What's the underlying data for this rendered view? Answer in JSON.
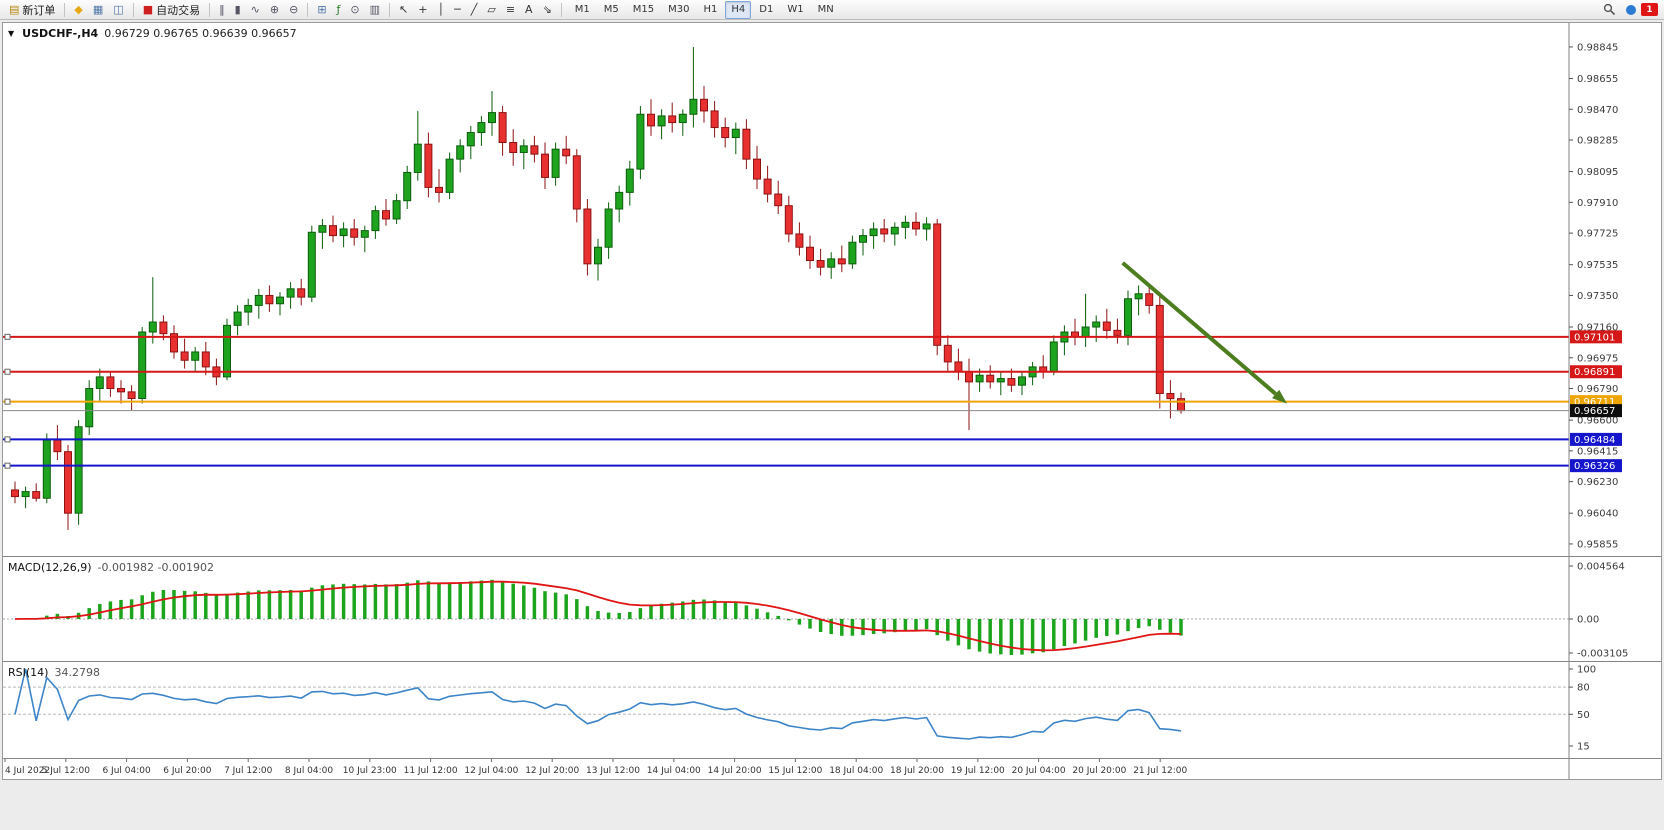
{
  "toolbar": {
    "buttons": [
      {
        "name": "new-order-button",
        "glyph": "▤",
        "glyph_color": "#b8860b",
        "label": "新订单"
      },
      {
        "sep": true
      },
      {
        "name": "sound-button",
        "glyph": "◆",
        "glyph_color": "#e6a817"
      },
      {
        "name": "market-watch-button",
        "glyph": "▦",
        "glyph_color": "#4f75a8"
      },
      {
        "name": "data-window-button",
        "glyph": "◫",
        "glyph_color": "#4f75a8"
      },
      {
        "sep": true
      },
      {
        "name": "autotrade-button",
        "glyph": "■",
        "glyph_color": "#cf1f1f",
        "label": "自动交易"
      },
      {
        "sep": true
      },
      {
        "name": "bar-chart-button",
        "glyph": "‖",
        "glyph_color": "#556"
      },
      {
        "name": "candle-chart-button",
        "glyph": "▮",
        "glyph_color": "#556"
      },
      {
        "name": "line-chart-button",
        "glyph": "∿",
        "glyph_color": "#556"
      },
      {
        "name": "zoom-in-button",
        "glyph": "⊕",
        "glyph_color": "#556"
      },
      {
        "name": "zoom-out-button",
        "glyph": "⊖",
        "glyph_color": "#556"
      },
      {
        "sep": true
      },
      {
        "name": "tile-windows-button",
        "glyph": "⊞",
        "glyph_color": "#4f75a8"
      },
      {
        "name": "indicators-button",
        "glyph": "ƒ",
        "glyph_color": "#2d7d2d"
      },
      {
        "name": "period-button",
        "glyph": "⊙",
        "glyph_color": "#556"
      },
      {
        "name": "template-button",
        "glyph": "▥",
        "glyph_color": "#556"
      },
      {
        "sep": true
      },
      {
        "name": "cursor-button",
        "glyph": "↖",
        "glyph_color": "#333"
      },
      {
        "name": "crosshair-button",
        "glyph": "+",
        "glyph_color": "#333"
      },
      {
        "name": "vertical-line-button",
        "glyph": "│",
        "glyph_color": "#333"
      },
      {
        "name": "horizontal-line-button",
        "glyph": "─",
        "glyph_color": "#333"
      },
      {
        "name": "trendline-button",
        "glyph": "╱",
        "glyph_color": "#333"
      },
      {
        "name": "channel-button",
        "glyph": "▱",
        "glyph_color": "#333"
      },
      {
        "name": "fibonacci-button",
        "glyph": "≡",
        "glyph_color": "#333"
      },
      {
        "name": "text-button",
        "glyph": "A",
        "glyph_color": "#333"
      },
      {
        "name": "arrow-object-button",
        "glyph": "⇘",
        "glyph_color": "#333"
      },
      {
        "sep": true
      }
    ],
    "timeframes": [
      "M1",
      "M5",
      "M15",
      "M30",
      "H1",
      "H4",
      "D1",
      "W1",
      "MN"
    ],
    "active_timeframe": "H4",
    "badge": "1"
  },
  "chart": {
    "dropdown_glyph": "▼",
    "title": "USDCHF-,H4",
    "ohlc": "0.96729 0.96765 0.96639 0.96657"
  },
  "chart_data": {
    "type": "candlestick",
    "symbol": "USDCHF",
    "period": "H4",
    "last_ohlc": {
      "open": "0.96729",
      "high": "0.96765",
      "low": "0.96639",
      "close": "0.96657"
    },
    "price_ticks": [
      "0.98845",
      "0.98655",
      "0.98470",
      "0.98285",
      "0.98095",
      "0.97910",
      "0.97725",
      "0.97535",
      "0.97350",
      "0.97160",
      "0.96975",
      "0.96790",
      "0.96600",
      "0.96415",
      "0.96230",
      "0.96040",
      "0.95855"
    ],
    "time_labels": [
      "4 Jul 2022",
      "5 Jul 12:00",
      "6 Jul 04:00",
      "6 Jul 20:00",
      "7 Jul 12:00",
      "8 Jul 04:00",
      "10 Jul 23:00",
      "11 Jul 12:00",
      "12 Jul 04:00",
      "12 Jul 20:00",
      "13 Jul 12:00",
      "14 Jul 04:00",
      "14 Jul 20:00",
      "15 Jul 12:00",
      "18 Jul 04:00",
      "18 Jul 20:00",
      "19 Jul 12:00",
      "20 Jul 04:00",
      "20 Jul 20:00",
      "21 Jul 12:00"
    ],
    "candles": [
      [
        0.9618,
        0.9623,
        0.961,
        0.9614
      ],
      [
        0.9614,
        0.962,
        0.9607,
        0.9617
      ],
      [
        0.9617,
        0.9622,
        0.9611,
        0.9613
      ],
      [
        0.9613,
        0.9652,
        0.961,
        0.9648
      ],
      [
        0.9648,
        0.9657,
        0.9636,
        0.9641
      ],
      [
        0.9641,
        0.9645,
        0.9594,
        0.9604
      ],
      [
        0.9604,
        0.966,
        0.9597,
        0.9656
      ],
      [
        0.9656,
        0.9684,
        0.9651,
        0.9679
      ],
      [
        0.9679,
        0.9691,
        0.9671,
        0.9686
      ],
      [
        0.9686,
        0.9689,
        0.9674,
        0.9679
      ],
      [
        0.9679,
        0.9684,
        0.967,
        0.9677
      ],
      [
        0.9677,
        0.9681,
        0.9666,
        0.9673
      ],
      [
        0.9673,
        0.9716,
        0.967,
        0.9713
      ],
      [
        0.9713,
        0.9746,
        0.9706,
        0.9719
      ],
      [
        0.9719,
        0.9723,
        0.9708,
        0.9712
      ],
      [
        0.9712,
        0.9717,
        0.9697,
        0.9701
      ],
      [
        0.9701,
        0.9709,
        0.9691,
        0.9696
      ],
      [
        0.9696,
        0.9704,
        0.9689,
        0.9701
      ],
      [
        0.9701,
        0.9707,
        0.9687,
        0.9692
      ],
      [
        0.9692,
        0.9697,
        0.9681,
        0.9686
      ],
      [
        0.9686,
        0.9721,
        0.9684,
        0.9717
      ],
      [
        0.9717,
        0.9729,
        0.9711,
        0.9725
      ],
      [
        0.9725,
        0.9733,
        0.9717,
        0.9729
      ],
      [
        0.9729,
        0.9739,
        0.9721,
        0.9735
      ],
      [
        0.9735,
        0.9741,
        0.9725,
        0.973
      ],
      [
        0.973,
        0.9737,
        0.9723,
        0.9734
      ],
      [
        0.9734,
        0.9743,
        0.9727,
        0.9739
      ],
      [
        0.9739,
        0.9745,
        0.9729,
        0.9734
      ],
      [
        0.9734,
        0.9777,
        0.9731,
        0.9773
      ],
      [
        0.9773,
        0.9781,
        0.9763,
        0.9777
      ],
      [
        0.9777,
        0.9783,
        0.9767,
        0.9771
      ],
      [
        0.9771,
        0.9779,
        0.9764,
        0.9775
      ],
      [
        0.9775,
        0.9781,
        0.9765,
        0.977
      ],
      [
        0.977,
        0.9777,
        0.9761,
        0.9774
      ],
      [
        0.9774,
        0.9789,
        0.9769,
        0.9786
      ],
      [
        0.9786,
        0.9793,
        0.9777,
        0.9781
      ],
      [
        0.9781,
        0.9796,
        0.9778,
        0.9792
      ],
      [
        0.9792,
        0.9813,
        0.9787,
        0.9809
      ],
      [
        0.9809,
        0.9846,
        0.9804,
        0.9826
      ],
      [
        0.9826,
        0.9833,
        0.9794,
        0.98
      ],
      [
        0.98,
        0.9811,
        0.9791,
        0.9797
      ],
      [
        0.9797,
        0.9821,
        0.9793,
        0.9817
      ],
      [
        0.9817,
        0.9829,
        0.9809,
        0.9825
      ],
      [
        0.9825,
        0.9837,
        0.9817,
        0.9833
      ],
      [
        0.9833,
        0.9843,
        0.9825,
        0.9839
      ],
      [
        0.9839,
        0.9858,
        0.9831,
        0.9845
      ],
      [
        0.9845,
        0.9849,
        0.9819,
        0.9827
      ],
      [
        0.9827,
        0.9835,
        0.9813,
        0.9821
      ],
      [
        0.9821,
        0.9829,
        0.9811,
        0.9825
      ],
      [
        0.9825,
        0.9831,
        0.9815,
        0.982
      ],
      [
        0.982,
        0.9827,
        0.9799,
        0.9806
      ],
      [
        0.9806,
        0.9827,
        0.9801,
        0.9823
      ],
      [
        0.9823,
        0.9831,
        0.9814,
        0.9819
      ],
      [
        0.9819,
        0.9823,
        0.9779,
        0.9787
      ],
      [
        0.9787,
        0.9793,
        0.9747,
        0.9754
      ],
      [
        0.9754,
        0.9769,
        0.9744,
        0.9764
      ],
      [
        0.9764,
        0.9791,
        0.9757,
        0.9787
      ],
      [
        0.9787,
        0.9801,
        0.9779,
        0.9797
      ],
      [
        0.9797,
        0.9816,
        0.9789,
        0.9811
      ],
      [
        0.9811,
        0.9849,
        0.9805,
        0.9844
      ],
      [
        0.9844,
        0.9853,
        0.9831,
        0.9837
      ],
      [
        0.9837,
        0.9847,
        0.9829,
        0.9843
      ],
      [
        0.9843,
        0.9851,
        0.9833,
        0.9839
      ],
      [
        0.9839,
        0.9847,
        0.9831,
        0.9844
      ],
      [
        0.9844,
        0.98845,
        0.9836,
        0.9853
      ],
      [
        0.9853,
        0.9861,
        0.9839,
        0.9846
      ],
      [
        0.9846,
        0.9852,
        0.983,
        0.9836
      ],
      [
        0.9836,
        0.9842,
        0.9824,
        0.983
      ],
      [
        0.983,
        0.9839,
        0.982,
        0.9835
      ],
      [
        0.9835,
        0.9841,
        0.9811,
        0.9817
      ],
      [
        0.9817,
        0.9825,
        0.9799,
        0.9805
      ],
      [
        0.9805,
        0.9813,
        0.9791,
        0.9796
      ],
      [
        0.9796,
        0.9804,
        0.9784,
        0.9789
      ],
      [
        0.9789,
        0.9795,
        0.9767,
        0.9772
      ],
      [
        0.9772,
        0.9779,
        0.9759,
        0.9764
      ],
      [
        0.9764,
        0.9771,
        0.9751,
        0.9756
      ],
      [
        0.9756,
        0.9763,
        0.9747,
        0.9752
      ],
      [
        0.9752,
        0.9761,
        0.9745,
        0.9757
      ],
      [
        0.9757,
        0.9765,
        0.9749,
        0.9754
      ],
      [
        0.9754,
        0.9771,
        0.9751,
        0.9767
      ],
      [
        0.9767,
        0.9775,
        0.9759,
        0.9771
      ],
      [
        0.9771,
        0.9779,
        0.9763,
        0.9775
      ],
      [
        0.9775,
        0.9781,
        0.9767,
        0.9772
      ],
      [
        0.9772,
        0.9779,
        0.9765,
        0.9776
      ],
      [
        0.9776,
        0.9783,
        0.9769,
        0.9779
      ],
      [
        0.9779,
        0.9785,
        0.9771,
        0.9775
      ],
      [
        0.9775,
        0.9782,
        0.9768,
        0.9778
      ],
      [
        0.9778,
        0.9781,
        0.9699,
        0.9705
      ],
      [
        0.9705,
        0.9711,
        0.9689,
        0.9695
      ],
      [
        0.9695,
        0.9703,
        0.9684,
        0.9689
      ],
      [
        0.9689,
        0.9697,
        0.9654,
        0.9683
      ],
      [
        0.9683,
        0.9691,
        0.9677,
        0.9687
      ],
      [
        0.9687,
        0.9693,
        0.9679,
        0.9683
      ],
      [
        0.9683,
        0.9689,
        0.9675,
        0.9685
      ],
      [
        0.9685,
        0.9691,
        0.9677,
        0.9681
      ],
      [
        0.9681,
        0.9689,
        0.9675,
        0.9686
      ],
      [
        0.9686,
        0.9695,
        0.9681,
        0.9692
      ],
      [
        0.9692,
        0.9699,
        0.9685,
        0.9689
      ],
      [
        0.9689,
        0.9711,
        0.9687,
        0.9707
      ],
      [
        0.9707,
        0.9717,
        0.9699,
        0.9713
      ],
      [
        0.9713,
        0.9721,
        0.9705,
        0.971
      ],
      [
        0.971,
        0.9736,
        0.9704,
        0.9716
      ],
      [
        0.9716,
        0.9723,
        0.9707,
        0.9719
      ],
      [
        0.9719,
        0.9727,
        0.9709,
        0.9714
      ],
      [
        0.9714,
        0.9721,
        0.9706,
        0.9711
      ],
      [
        0.9711,
        0.9738,
        0.9705,
        0.9733
      ],
      [
        0.9733,
        0.9741,
        0.9723,
        0.9736
      ],
      [
        0.9736,
        0.9742,
        0.9724,
        0.9729
      ],
      [
        0.9729,
        0.9735,
        0.9667,
        0.9676
      ],
      [
        0.9676,
        0.9684,
        0.9661,
        0.96729
      ],
      [
        0.96729,
        0.96765,
        0.96639,
        0.96657
      ]
    ],
    "hlines": [
      {
        "price": 0.97101,
        "label": "0.97101",
        "color": "#d51717",
        "width": 2
      },
      {
        "price": 0.96891,
        "label": "0.96891",
        "color": "#d51717",
        "width": 2
      },
      {
        "price": 0.96711,
        "label": "0.96711",
        "color": "#efa400",
        "width": 2
      },
      {
        "price": 0.96484,
        "label": "0.96484",
        "color": "#1515cc",
        "width": 2
      },
      {
        "price": 0.96326,
        "label": "0.96326",
        "color": "#1515cc",
        "width": 2
      }
    ],
    "bid_line": {
      "price": 0.96657,
      "label": "0.96657",
      "line_color": "#8a8a8a",
      "tag_color": "#0d0d0d"
    },
    "trend_arrow": {
      "from_index": 104.5,
      "from_price": 0.97546,
      "to_index": 120,
      "to_price": 0.96699,
      "color": "#4c7d1e",
      "width": 4
    },
    "colors": {
      "up": "#1ea31e",
      "up_border": "#0c5e0c",
      "down": "#e93030",
      "down_border": "#8d1212"
    },
    "macd": {
      "label": "MACD(12,26,9)",
      "values": "-0.001982 -0.001902",
      "axis_labels": [
        "0.004564",
        "0.00",
        "-0.003105"
      ],
      "fast": 12,
      "slow": 26,
      "signal": 9,
      "bar_color": "#1ca51c",
      "line_color": "#e01515"
    },
    "rsi": {
      "label": "RSI(14)",
      "value": "34.2798",
      "axis_labels": [
        100,
        80,
        50,
        15
      ],
      "period": 14,
      "line_color": "#3d85c8",
      "levels": [
        80,
        50
      ]
    }
  }
}
